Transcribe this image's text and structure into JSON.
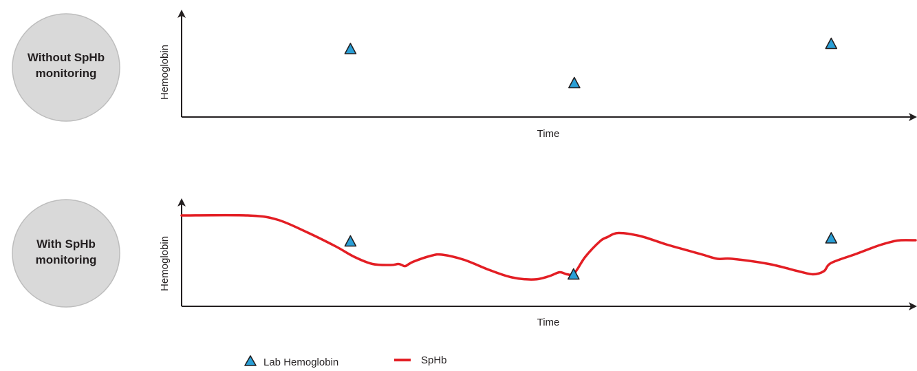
{
  "colors": {
    "badge_fill": "#d9d9d9",
    "badge_stroke": "#bdbdbd",
    "axis": "#231f20",
    "triangle_fill": "#2a9fd6",
    "triangle_stroke": "#231f20",
    "spHb_line": "#e31e24"
  },
  "chart_data": [
    {
      "type": "scatter",
      "badge": [
        "Without SpHb",
        "monitoring"
      ],
      "xlabel": "Time",
      "ylabel": "Hemoglobin",
      "x_unit": "relative time (0-1)",
      "y_unit": "relative hemoglobin (0-1)",
      "xlim": [
        0,
        1
      ],
      "ylim": [
        0,
        1
      ],
      "series": [
        {
          "name": "Lab Hemoglobin",
          "marker": "triangle",
          "points": [
            [
              0.23,
              0.66
            ],
            [
              0.535,
              0.33
            ],
            [
              0.885,
              0.71
            ]
          ]
        }
      ]
    },
    {
      "type": "line",
      "badge": [
        "With SpHb",
        "monitoring"
      ],
      "xlabel": "Time",
      "ylabel": "Hemoglobin",
      "x_unit": "relative time (0-1)",
      "y_unit": "relative hemoglobin (0-1)",
      "xlim": [
        0,
        1
      ],
      "ylim": [
        0,
        1
      ],
      "series": [
        {
          "name": "Lab Hemoglobin",
          "marker": "triangle",
          "points": [
            [
              0.23,
              0.63
            ],
            [
              0.534,
              0.31
            ],
            [
              0.885,
              0.66
            ]
          ]
        },
        {
          "name": "SpHb",
          "marker": "line",
          "points": [
            [
              0,
              0.88
            ],
            [
              0.09,
              0.88
            ],
            [
              0.13,
              0.84
            ],
            [
              0.17,
              0.72
            ],
            [
              0.21,
              0.58
            ],
            [
              0.235,
              0.48
            ],
            [
              0.26,
              0.41
            ],
            [
              0.285,
              0.4
            ],
            [
              0.295,
              0.41
            ],
            [
              0.3,
              0.4
            ],
            [
              0.305,
              0.39
            ],
            [
              0.315,
              0.43
            ],
            [
              0.34,
              0.49
            ],
            [
              0.355,
              0.5
            ],
            [
              0.385,
              0.45
            ],
            [
              0.42,
              0.35
            ],
            [
              0.45,
              0.28
            ],
            [
              0.48,
              0.26
            ],
            [
              0.5,
              0.29
            ],
            [
              0.515,
              0.33
            ],
            [
              0.525,
              0.31
            ],
            [
              0.535,
              0.32
            ],
            [
              0.55,
              0.48
            ],
            [
              0.57,
              0.63
            ],
            [
              0.58,
              0.67
            ],
            [
              0.595,
              0.71
            ],
            [
              0.625,
              0.68
            ],
            [
              0.66,
              0.6
            ],
            [
              0.69,
              0.54
            ],
            [
              0.71,
              0.5
            ],
            [
              0.73,
              0.46
            ],
            [
              0.75,
              0.46
            ],
            [
              0.8,
              0.41
            ],
            [
              0.84,
              0.34
            ],
            [
              0.86,
              0.31
            ],
            [
              0.875,
              0.34
            ],
            [
              0.885,
              0.42
            ],
            [
              0.92,
              0.51
            ],
            [
              0.95,
              0.59
            ],
            [
              0.97,
              0.63
            ],
            [
              0.98,
              0.64
            ],
            [
              1.0,
              0.64
            ]
          ]
        }
      ]
    }
  ],
  "legend": {
    "position": "bottom",
    "items": [
      {
        "label": "Lab Hemoglobin",
        "marker": "triangle"
      },
      {
        "label": "SpHb",
        "marker": "line"
      }
    ]
  }
}
